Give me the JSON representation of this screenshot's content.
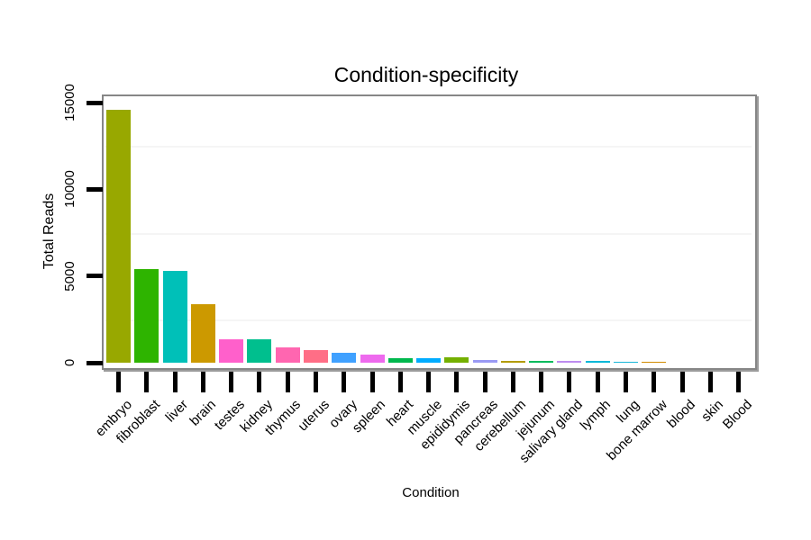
{
  "page": {
    "background_color": "#FFFFFF",
    "text_color": "#000000"
  },
  "chart_data": {
    "type": "bar",
    "title": "Condition-specificity",
    "xlabel": "Condition",
    "ylabel": "Total Reads",
    "legend": "none",
    "grid": "faint minor horizontal gridlines only",
    "ylim": [
      0,
      15500
    ],
    "yticks": [
      0,
      5000,
      10000,
      15000
    ],
    "ytick_labels": [
      "0",
      "5000",
      "10000",
      "15000"
    ],
    "minor_gridlines": [
      2500,
      7500,
      12500
    ],
    "panel_border_color": "#868686",
    "axis_tick_color": "#000000",
    "categories": [
      "embryo",
      "fibroblast",
      "liver",
      "brain",
      "testes",
      "kidney",
      "thymus",
      "uterus",
      "ovary",
      "spleen",
      "heart",
      "muscle",
      "epididymis",
      "pancreas",
      "cerebellum",
      "jejunum",
      "salivary gland",
      "lymph",
      "lung",
      "bone marrow",
      "blood",
      "skin",
      "Blood"
    ],
    "values": [
      14600,
      5400,
      5300,
      3400,
      1350,
      1340,
      860,
      710,
      560,
      460,
      280,
      275,
      330,
      155,
      110,
      105,
      95,
      100,
      55,
      50,
      8,
      5,
      3
    ],
    "bar_colors": [
      "#98A800",
      "#2EB400",
      "#00C0B8",
      "#CC9900",
      "#FF60CB",
      "#00BF8E",
      "#FF66B0",
      "#FF6E86",
      "#40A1FF",
      "#EE6AEE",
      "#00B84E",
      "#00ACFF",
      "#74B000",
      "#9A9AF4",
      "#B29B00",
      "#00BA5C",
      "#BE8CF0",
      "#00B7D8",
      "#19B6D8",
      "#D18A00",
      "#999999",
      "#999999",
      "#999999"
    ]
  }
}
